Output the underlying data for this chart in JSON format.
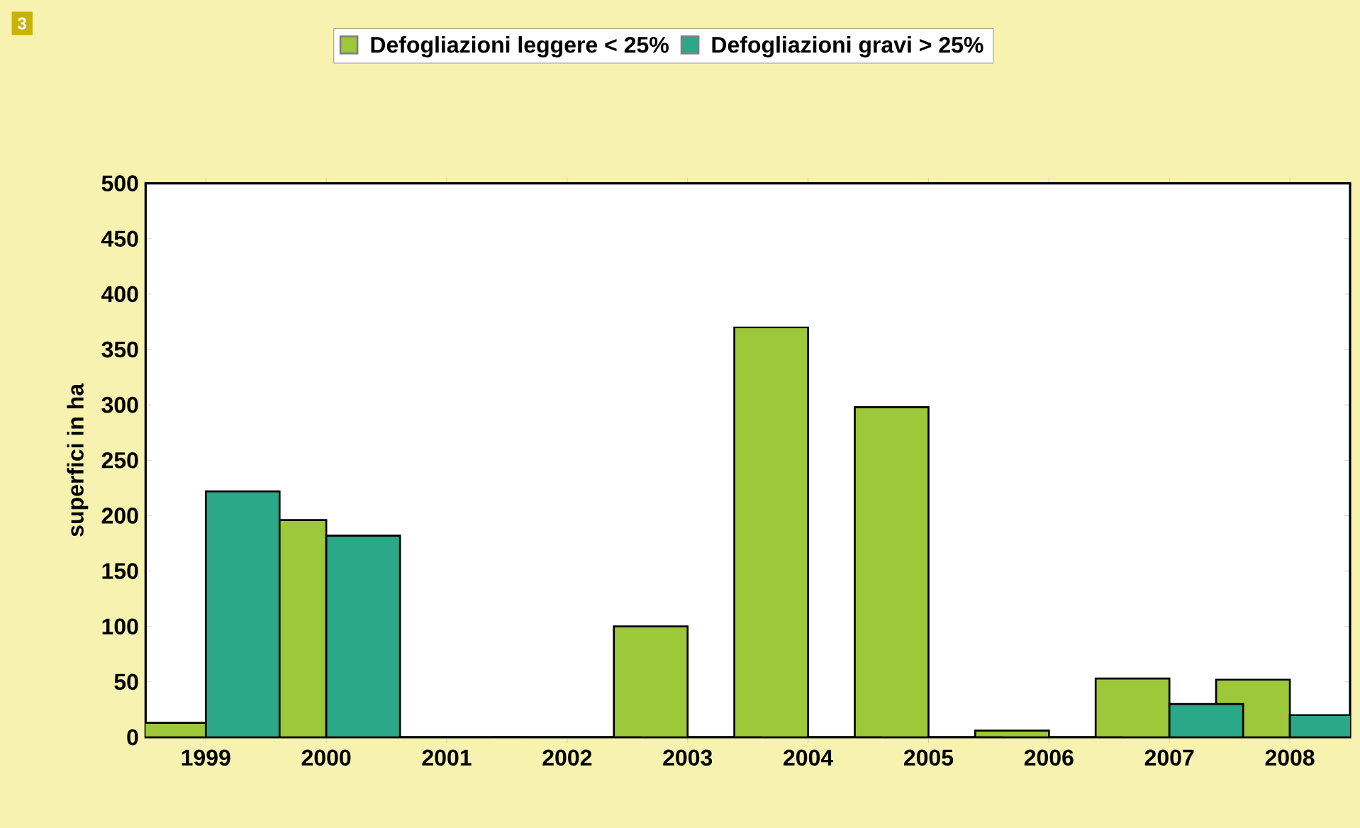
{
  "chart_data": {
    "type": "bar",
    "ylabel": "superfici in ha",
    "annotations": [
      "3"
    ],
    "categories": [
      "1999",
      "2000",
      "2001",
      "2002",
      "2003",
      "2004",
      "2005",
      "2006",
      "2007",
      "2008"
    ],
    "series": [
      {
        "name": "Defogliazioni leggere < 25%",
        "color": "#9dc83a",
        "values": [
          13,
          196,
          0,
          0,
          100,
          370,
          298,
          6,
          53,
          52
        ]
      },
      {
        "name": "Defogliazioni gravi > 25%",
        "color": "#2aa888",
        "values": [
          222,
          182,
          0,
          0,
          0,
          0,
          0,
          0,
          30,
          20
        ]
      }
    ],
    "ylim": [
      0,
      500
    ],
    "yticks": [
      0,
      50,
      100,
      150,
      200,
      250,
      300,
      350,
      400,
      450,
      500
    ],
    "legend": "top"
  }
}
